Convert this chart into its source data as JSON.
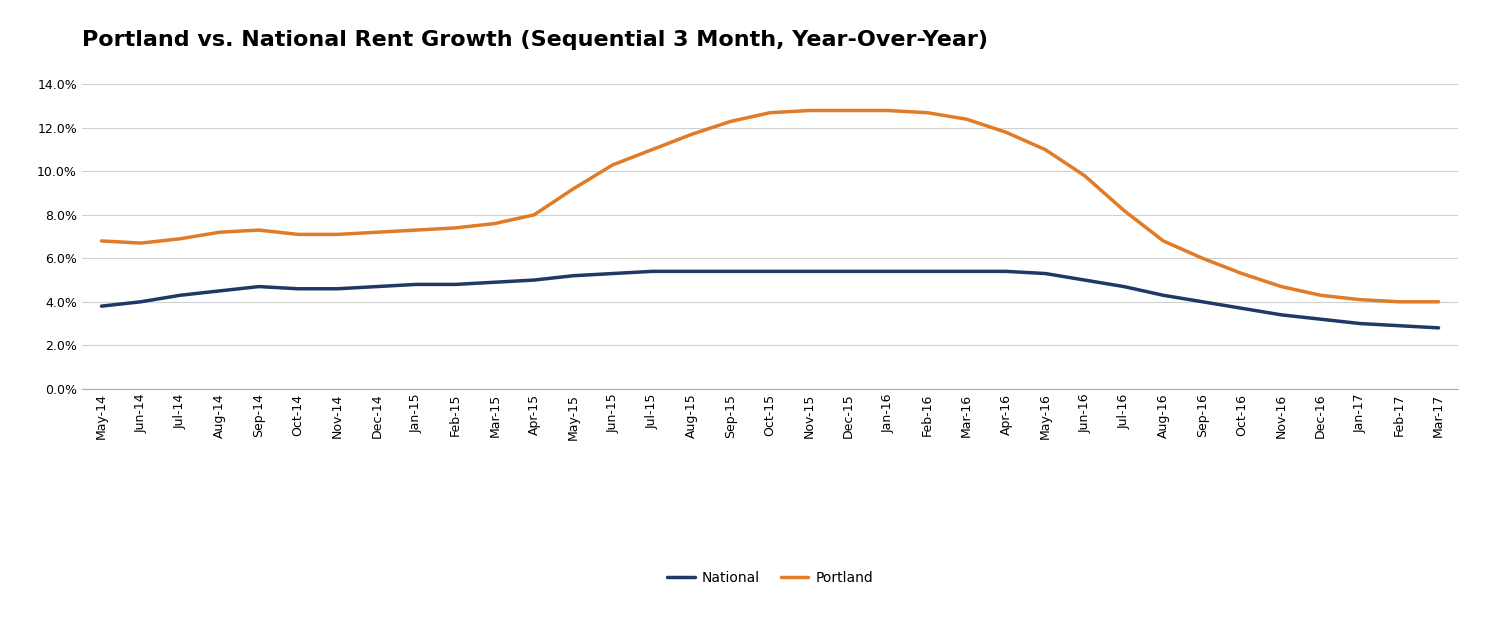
{
  "title": "Portland vs. National Rent Growth (Sequential 3 Month, Year-Over-Year)",
  "categories": [
    "May-14",
    "Jun-14",
    "Jul-14",
    "Aug-14",
    "Sep-14",
    "Oct-14",
    "Nov-14",
    "Dec-14",
    "Jan-15",
    "Feb-15",
    "Mar-15",
    "Apr-15",
    "May-15",
    "Jun-15",
    "Jul-15",
    "Aug-15",
    "Sep-15",
    "Oct-15",
    "Nov-15",
    "Dec-15",
    "Jan-16",
    "Feb-16",
    "Mar-16",
    "Apr-16",
    "May-16",
    "Jun-16",
    "Jul-16",
    "Aug-16",
    "Sep-16",
    "Oct-16",
    "Nov-16",
    "Dec-16",
    "Jan-17",
    "Feb-17",
    "Mar-17"
  ],
  "national": [
    0.038,
    0.04,
    0.043,
    0.045,
    0.047,
    0.046,
    0.046,
    0.047,
    0.048,
    0.048,
    0.049,
    0.05,
    0.052,
    0.053,
    0.054,
    0.054,
    0.054,
    0.054,
    0.054,
    0.054,
    0.054,
    0.054,
    0.054,
    0.054,
    0.053,
    0.05,
    0.047,
    0.043,
    0.04,
    0.037,
    0.034,
    0.032,
    0.03,
    0.029,
    0.028
  ],
  "portland": [
    0.068,
    0.067,
    0.069,
    0.072,
    0.073,
    0.071,
    0.071,
    0.072,
    0.073,
    0.074,
    0.076,
    0.08,
    0.092,
    0.103,
    0.11,
    0.117,
    0.123,
    0.127,
    0.128,
    0.128,
    0.128,
    0.127,
    0.124,
    0.118,
    0.11,
    0.098,
    0.082,
    0.068,
    0.06,
    0.053,
    0.047,
    0.043,
    0.041,
    0.04,
    0.04
  ],
  "national_color": "#1f3864",
  "portland_color": "#e07b27",
  "line_width": 2.5,
  "ylim": [
    0.0,
    0.15
  ],
  "yticks": [
    0.0,
    0.02,
    0.04,
    0.06,
    0.08,
    0.1,
    0.12,
    0.14
  ],
  "background_color": "#ffffff",
  "grid_color": "#d0d0d0",
  "title_fontsize": 16,
  "tick_fontsize": 9,
  "legend_fontsize": 10
}
